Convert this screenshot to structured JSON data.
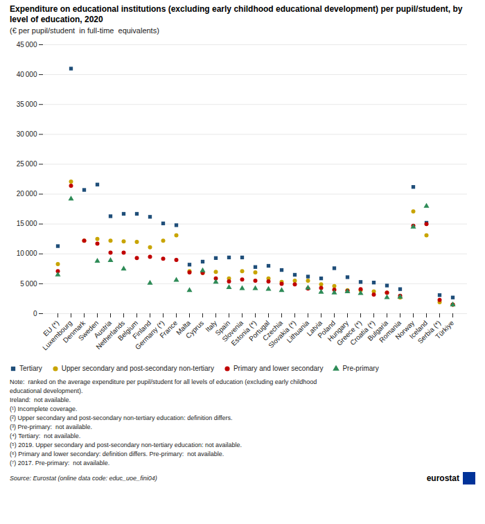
{
  "chart_data": {
    "type": "scatter",
    "title": "Expenditure on educational institutions (excluding early childhood educational development) per pupil/student, by level of education, 2020",
    "subtitle": "(€ per pupil/student  in full-time  equivalents)",
    "categories": [
      "EU (*)",
      "Luxembourg",
      "Denmark",
      "Sweden",
      "Austria",
      "Netherlands",
      "Belgium",
      "Finland",
      "Germany (*)",
      "France",
      "Malta",
      "Cyprus",
      "Italy",
      "Spain",
      "Slovenia",
      "Estonia (*)",
      "Portugal",
      "Czechia",
      "Slovakia (*)",
      "Lithuania",
      "Latvia",
      "Poland",
      "Hungary",
      "Greece (*)",
      "Croatia (*)",
      "Bulgaria",
      "Romania",
      "Norway",
      "Iceland",
      "Serbia (*)",
      "Türkiye"
    ],
    "series": [
      {
        "name": "Tertiary",
        "color": "#1f4e79",
        "marker": "square",
        "values": [
          11300,
          41000,
          20700,
          21600,
          16300,
          16700,
          16700,
          16200,
          15100,
          14800,
          8200,
          8700,
          9300,
          9400,
          9400,
          7800,
          8000,
          7300,
          6500,
          6200,
          5900,
          7600,
          6100,
          5300,
          5200,
          4700,
          4100,
          21200,
          15200,
          3100,
          2700
        ]
      },
      {
        "name": "Upper secondary and post-secondary non-tertiary",
        "color": "#c8a400",
        "marker": "circle",
        "values": [
          8300,
          22100,
          12200,
          12500,
          12200,
          12100,
          12000,
          11100,
          12200,
          13100,
          7100,
          6800,
          7000,
          5900,
          7100,
          6900,
          5900,
          5300,
          5500,
          5500,
          4900,
          4600,
          3900,
          3900,
          3700,
          3500,
          2700,
          17100,
          13100,
          1900,
          1500
        ]
      },
      {
        "name": "Primary and lower secondary",
        "color": "#c00000",
        "marker": "circle",
        "values": [
          7100,
          21400,
          12200,
          11700,
          10200,
          10200,
          9300,
          9500,
          9200,
          9000,
          6900,
          6800,
          5900,
          5400,
          5700,
          5500,
          5400,
          5000,
          4900,
          4200,
          4300,
          4000,
          3800,
          4100,
          3200,
          3500,
          3000,
          14700,
          15000,
          2300,
          1500
        ]
      },
      {
        "name": "Pre-primary",
        "color": "#2e8b57",
        "marker": "triangle",
        "values": [
          6500,
          19200,
          null,
          8800,
          8900,
          7500,
          null,
          5100,
          null,
          5600,
          3900,
          7200,
          5300,
          4400,
          4200,
          4200,
          4100,
          3900,
          null,
          4300,
          3600,
          3500,
          3700,
          3400,
          null,
          2700,
          2800,
          14500,
          18000,
          null,
          1500
        ]
      }
    ],
    "ylim": [
      0,
      45000
    ],
    "yticks": [
      0,
      {
        "value": 5000,
        "label": "5 000"
      },
      {
        "value": 10000,
        "label": "10 000"
      },
      {
        "value": 15000,
        "label": "15 000"
      },
      {
        "value": 20000,
        "label": "20 000"
      },
      {
        "value": 25000,
        "label": "25 000"
      },
      {
        "value": 30000,
        "label": "30 000"
      },
      {
        "value": 35000,
        "label": "35 000"
      },
      {
        "value": 40000,
        "label": "40 000"
      },
      {
        "value": 45000,
        "label": "45 000"
      }
    ],
    "grid": true,
    "legend": "bottom",
    "notes": [
      "Note:  ranked on the average expenditure per pupil/student for all levels of education (excluding early childhood",
      "educational development).",
      "Ireland:  not available.",
      "(¹) Incomplete coverage.",
      "(²) Upper secondary and post-secondary non-tertiary education: definition differs.",
      "(³) Pre-primary:  not available.",
      "(⁴) Tertiary:  not available.",
      "(⁵) 2019. Upper secondary and post-secondary non-tertiary education: not available.",
      "(⁶) Primary and lower secondary: definition differs. Pre-primary:  not available.",
      "(⁷) 2017. Pre-primary:  not available."
    ],
    "source": "Source: Eurostat (online data code: educ_uoe_fini04)",
    "logo": "eurostat"
  }
}
